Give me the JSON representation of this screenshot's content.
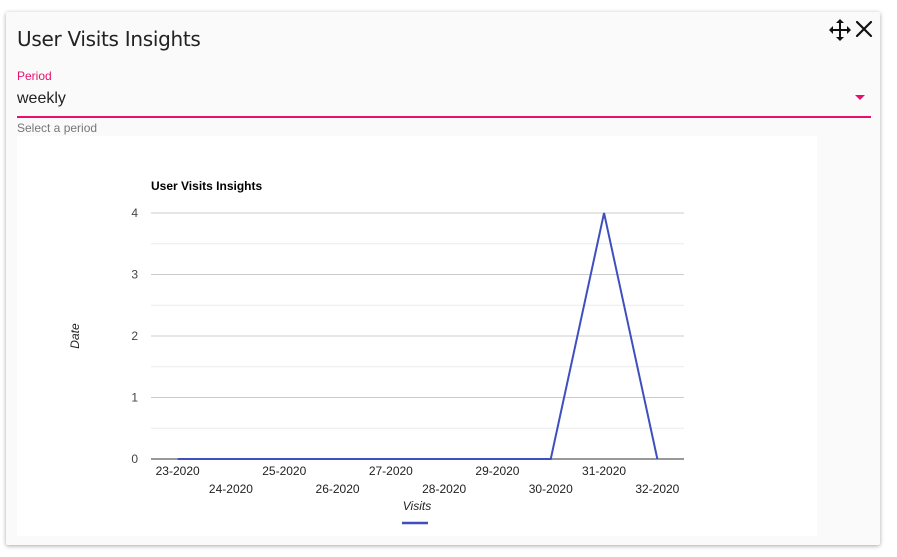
{
  "window": {
    "title": "User Visits Insights"
  },
  "icons": {
    "move": "move-icon",
    "close": "close-icon"
  },
  "period": {
    "label": "Period",
    "value": "weekly",
    "help": "Select a period",
    "accent": "#e8106e"
  },
  "chart_data": {
    "type": "line",
    "title": "User Visits Insights",
    "xlabel": "Visits",
    "ylabel": "Date",
    "categories": [
      "23-2020",
      "24-2020",
      "25-2020",
      "26-2020",
      "27-2020",
      "28-2020",
      "29-2020",
      "30-2020",
      "31-2020",
      "32-2020"
    ],
    "series": [
      {
        "values": [
          0,
          0,
          0,
          0,
          0,
          0,
          0,
          0,
          4,
          0
        ],
        "color": "#3f4fbf"
      }
    ],
    "ylim": [
      0,
      4
    ],
    "yticks": [
      0,
      1,
      2,
      3,
      4
    ],
    "grid": true,
    "legend": "bottom"
  }
}
